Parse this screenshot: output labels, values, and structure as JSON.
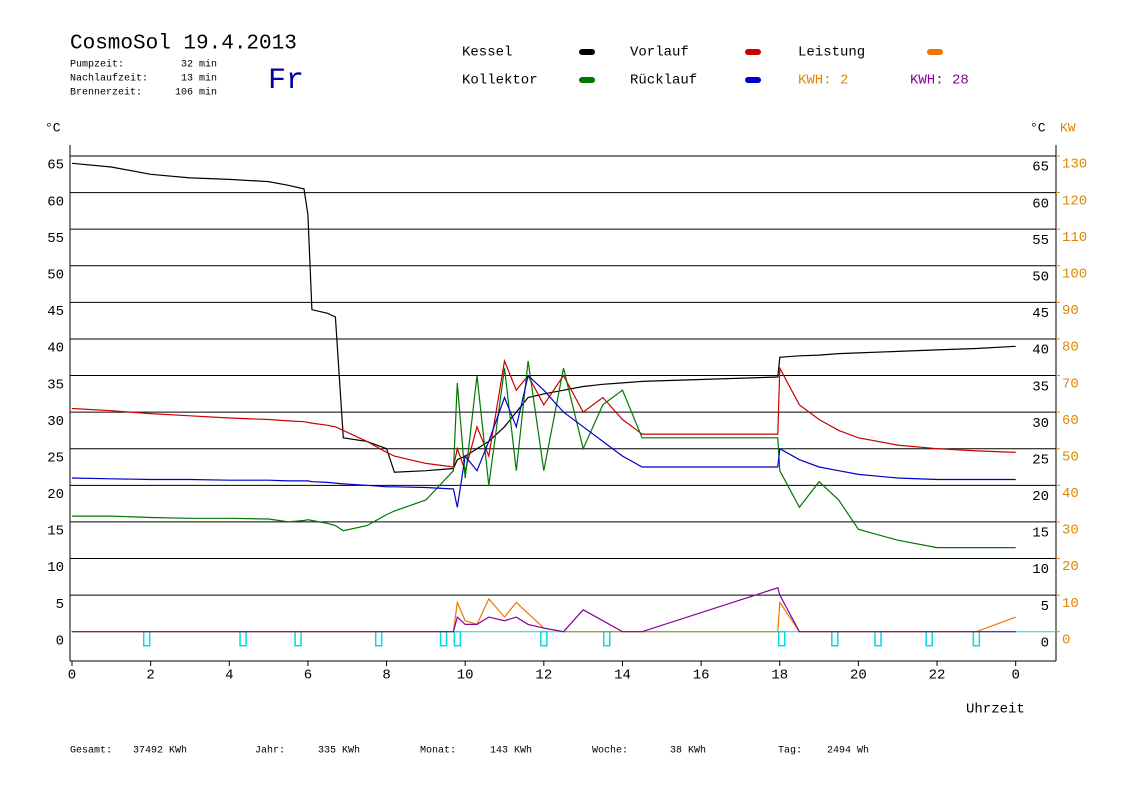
{
  "header": {
    "title": "CosmoSol 19.4.2013",
    "weekday": "Fr",
    "stats": [
      [
        "Pumpzeit:",
        "32 min"
      ],
      [
        "Nachlaufzeit:",
        "13 min"
      ],
      [
        "Brennerzeit:",
        "106 min"
      ]
    ],
    "kwh_day": "KWH: 2"
  },
  "footer": [
    [
      "Gesamt:",
      "37492 KWh"
    ],
    [
      "Jahr:",
      "335 KWh"
    ],
    [
      "Monat:",
      "143 KWh"
    ],
    [
      "Woche:",
      "38 KWh"
    ],
    [
      "Tag:",
      "2494 Wh"
    ]
  ],
  "chart_data": {
    "type": "line",
    "ylabel": "°C",
    "y2label": "KW",
    "xlabel": "Uhrzeit",
    "xlim": [
      0,
      25
    ],
    "xticks": [
      0,
      2,
      4,
      6,
      8,
      10,
      12,
      14,
      16,
      18,
      20,
      22,
      {
        "value": 24,
        "label": "0"
      }
    ],
    "ylim": [
      -4,
      66.5
    ],
    "yticks": [
      0,
      5,
      10,
      15,
      20,
      25,
      30,
      35,
      40,
      45,
      50,
      55,
      60,
      65
    ],
    "y2lim": [
      -8,
      133
    ],
    "y2ticks": [
      0,
      10,
      20,
      30,
      40,
      50,
      60,
      70,
      80,
      90,
      100,
      110,
      120,
      130
    ],
    "grid": true,
    "x": [
      0,
      1,
      2,
      3,
      4,
      5,
      5.5,
      5.9,
      6,
      6.1,
      6.5,
      6.7,
      6.9,
      7.5,
      8,
      8.2,
      9,
      9.7,
      9.8,
      10,
      10.3,
      10.6,
      11,
      11.3,
      11.6,
      12,
      12.5,
      13,
      13.5,
      14,
      14.5,
      17.95,
      18,
      18.5,
      19,
      19.5,
      20,
      21,
      22,
      23,
      24
    ],
    "series": [
      {
        "name": "Kessel",
        "color": "#000000",
        "values": [
          64,
          63.5,
          62.5,
          62,
          61.8,
          61.5,
          61,
          60.5,
          57,
          44,
          43.5,
          43,
          26.5,
          26,
          25,
          21.8,
          22,
          22.3,
          23.5,
          24,
          25,
          26,
          28,
          30,
          32,
          32.5,
          33,
          33.5,
          33.8,
          34,
          34.2,
          34.8,
          37.5,
          37.7,
          37.8,
          38,
          38.1,
          38.3,
          38.5,
          38.7,
          39
        ]
      },
      {
        "name": "Vorlauf",
        "color": "#cc0000",
        "values": [
          30.5,
          30.2,
          29.8,
          29.5,
          29.2,
          29,
          28.8,
          28.7,
          28.6,
          28.5,
          28.2,
          28,
          27.5,
          26,
          24.5,
          24,
          23,
          22.5,
          25,
          22,
          28,
          24,
          37,
          33,
          35,
          31,
          35,
          30,
          32,
          29,
          27,
          27,
          36,
          31,
          29,
          27.5,
          26.5,
          25.5,
          25,
          24.7,
          24.5
        ]
      },
      {
        "name": "Leistung",
        "color": "#ee7700",
        "axis": "y2",
        "values": [
          0,
          0,
          0,
          0,
          0,
          0,
          0,
          0,
          0,
          0,
          0,
          0,
          0,
          0,
          0,
          0,
          0,
          0,
          8,
          3,
          2,
          9,
          4,
          8,
          5,
          1,
          0,
          0,
          0,
          0,
          0,
          0,
          8,
          0,
          0,
          0,
          0,
          0,
          0,
          0,
          4
        ]
      },
      {
        "name": "Kollektor",
        "color": "#007700",
        "values": [
          15.8,
          15.8,
          15.6,
          15.5,
          15.5,
          15.4,
          15,
          15.2,
          15.3,
          15.2,
          14.8,
          14.5,
          13.8,
          14.5,
          16,
          16.5,
          18,
          22,
          34,
          21,
          35,
          20,
          36,
          22,
          37,
          22,
          36,
          25,
          31,
          33,
          26.5,
          26.5,
          22,
          17,
          20.5,
          18,
          14,
          12.5,
          11.5,
          11.5,
          11.5
        ]
      },
      {
        "name": "Rücklauf",
        "color": "#0000cc",
        "values": [
          21,
          20.9,
          20.8,
          20.8,
          20.7,
          20.7,
          20.6,
          20.6,
          20.6,
          20.5,
          20.4,
          20.3,
          20.2,
          20,
          19.8,
          19.8,
          19.7,
          19.5,
          17,
          24,
          22,
          26,
          32,
          28,
          35,
          33,
          30,
          28,
          26,
          24,
          22.5,
          22.5,
          25,
          23.5,
          22.5,
          22,
          21.5,
          21,
          20.8,
          20.8,
          20.8
        ]
      },
      {
        "name": "KWH: 28",
        "color": "#880099",
        "axis": "y2",
        "values": [
          0,
          0,
          0,
          0,
          0,
          0,
          0,
          0,
          0,
          0,
          0,
          0,
          0,
          0,
          0,
          0,
          0,
          0,
          4,
          2,
          2,
          4,
          3,
          4,
          2,
          1,
          0,
          6,
          3,
          0,
          0,
          12,
          10,
          0,
          0,
          0,
          0,
          0,
          0,
          0,
          0
        ]
      }
    ],
    "pump_markers": [
      1.9,
      4.35,
      5.75,
      7.8,
      9.45,
      9.8,
      12,
      13.6,
      18.05,
      19.4,
      20.5,
      21.8,
      23
    ]
  }
}
